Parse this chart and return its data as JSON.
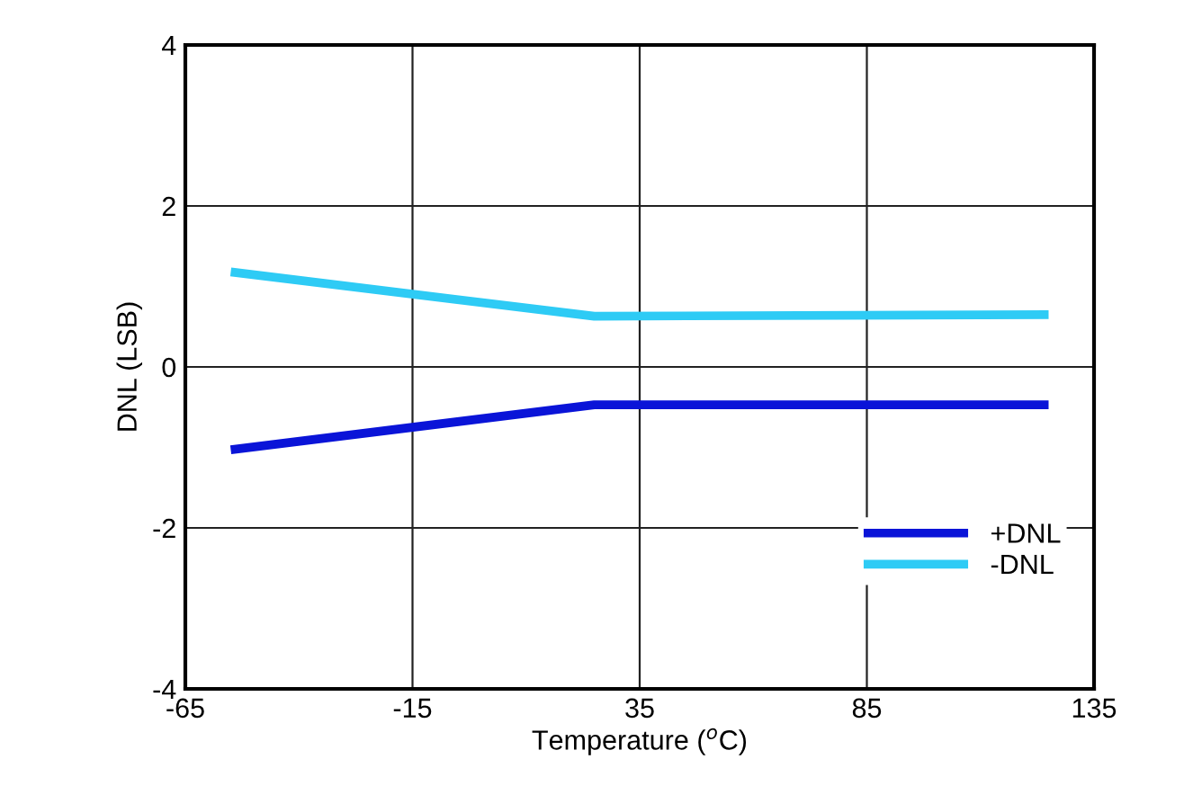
{
  "chart_data": {
    "type": "line",
    "xlabel": "Temperature ($^{o}$C)",
    "ylabel": "DNL (LSB)",
    "x": [
      -55,
      25,
      125
    ],
    "series": [
      {
        "name": "+DNL",
        "color": "#0a14d8",
        "values": [
          -1.03,
          -0.47,
          -0.47
        ]
      },
      {
        "name": "-DNL",
        "color": "#2ecbf5",
        "values": [
          1.18,
          0.63,
          0.65
        ]
      }
    ],
    "xlim": [
      -65,
      135
    ],
    "xticks": [
      -65,
      -15,
      35,
      85,
      135
    ],
    "ylim": [
      -4,
      4
    ],
    "yticks": [
      -4,
      -2,
      0,
      2,
      4
    ],
    "grid": true,
    "legend": "lower right",
    "line_style": "solid",
    "marker": "none"
  }
}
